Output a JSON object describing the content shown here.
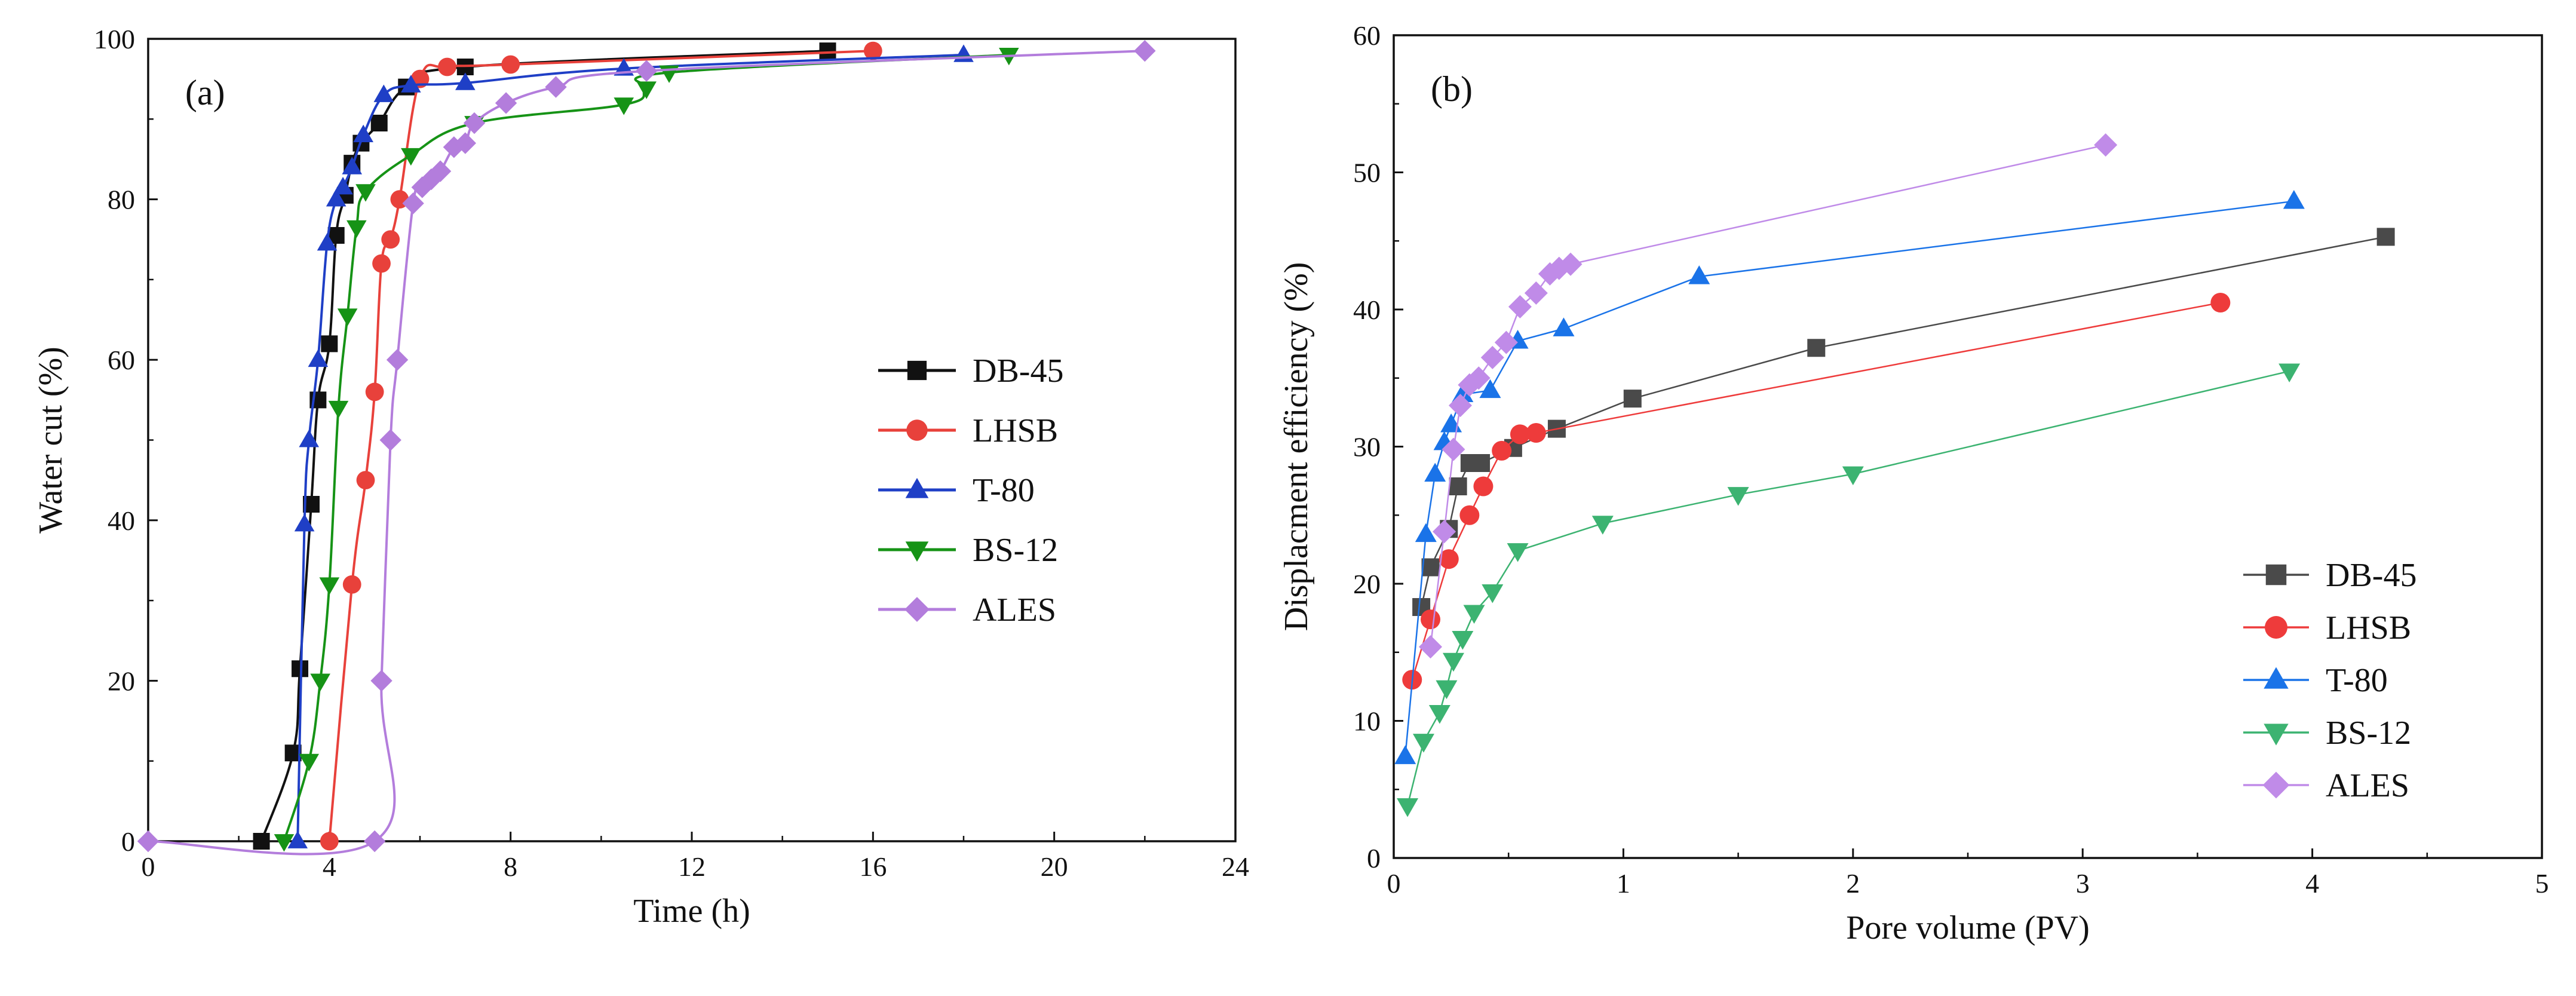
{
  "chart_data": [
    {
      "type": "line",
      "panel_label": "(a)",
      "title": "",
      "xlabel": "Time (h)",
      "ylabel": "Water cut (%)",
      "xlim": [
        0,
        24
      ],
      "ylim": [
        0,
        100
      ],
      "xticks": [
        0,
        4,
        8,
        12,
        16,
        20,
        24
      ],
      "yticks": [
        0,
        20,
        40,
        60,
        80,
        100
      ],
      "grid": false,
      "legend_position": "center-right",
      "series": [
        {
          "name": "DB-45",
          "color": "#111111",
          "marker": "square",
          "smooth": true,
          "x": [
            2.5,
            3.2,
            3.35,
            3.6,
            3.75,
            4.0,
            4.15,
            4.35,
            4.5,
            4.7,
            5.1,
            5.7,
            7.0,
            15.0
          ],
          "y": [
            0,
            11,
            21.5,
            42,
            55,
            62,
            75.5,
            80.5,
            84.5,
            87,
            89.5,
            94,
            96.5,
            98.5
          ]
        },
        {
          "name": "LHSB",
          "color": "#e8413b",
          "marker": "circle",
          "smooth": true,
          "x": [
            4.0,
            4.5,
            4.8,
            5.0,
            5.15,
            5.35,
            5.55,
            6.0,
            6.6,
            8.0,
            16.0
          ],
          "y": [
            0,
            32,
            45,
            56,
            72,
            75,
            80,
            95,
            96.5,
            96.8,
            98.5
          ]
        },
        {
          "name": "T-80",
          "color": "#1f3fc6",
          "marker": "triangle-up",
          "smooth": true,
          "x": [
            3.3,
            3.45,
            3.55,
            3.75,
            3.95,
            4.15,
            4.3,
            4.5,
            4.75,
            5.2,
            5.8,
            7.0,
            10.5,
            18.0
          ],
          "y": [
            0,
            39.5,
            50,
            60,
            74.5,
            80,
            81.5,
            84,
            88,
            93,
            94.2,
            94.5,
            96.3,
            98
          ]
        },
        {
          "name": "BS-12",
          "color": "#169316",
          "marker": "triangle-down",
          "smooth": true,
          "x": [
            3.0,
            3.55,
            3.8,
            4.0,
            4.2,
            4.4,
            4.6,
            4.8,
            5.8,
            7.2,
            10.5,
            11.0,
            11.5,
            19.0
          ],
          "y": [
            0,
            10,
            20,
            32,
            54,
            65.5,
            76.5,
            81,
            85.5,
            89.5,
            91.8,
            93.8,
            95.8,
            98
          ]
        },
        {
          "name": "ALES",
          "color": "#b37ddc",
          "marker": "diamond",
          "smooth": true,
          "x": [
            0.0,
            5.0,
            5.15,
            5.35,
            5.5,
            5.85,
            6.05,
            6.25,
            6.45,
            6.75,
            7.0,
            7.2,
            7.9,
            9.0,
            11.0,
            22.0
          ],
          "y": [
            0,
            0,
            20,
            50,
            60,
            79.5,
            81.5,
            82.5,
            83.5,
            86.5,
            87,
            89.5,
            92,
            94,
            96,
            98.5
          ]
        }
      ]
    },
    {
      "type": "line",
      "panel_label": "(b)",
      "title": "",
      "xlabel": "Pore volume (PV)",
      "ylabel": "Displacment efficiency (%)",
      "xlim": [
        0,
        5
      ],
      "ylim": [
        0,
        60
      ],
      "xticks": [
        0,
        1,
        2,
        3,
        4,
        5
      ],
      "yticks": [
        0,
        10,
        20,
        30,
        40,
        50,
        60
      ],
      "grid": false,
      "legend_position": "bottom-right",
      "series": [
        {
          "name": "DB-45",
          "color": "#4a4a4a",
          "marker": "square",
          "smooth": false,
          "x": [
            0.12,
            0.16,
            0.24,
            0.28,
            0.33,
            0.38,
            0.52,
            0.71,
            1.04,
            1.84,
            4.32
          ],
          "y": [
            18.3,
            21.2,
            24.0,
            27.1,
            28.8,
            28.8,
            29.9,
            31.3,
            33.5,
            37.2,
            45.3
          ]
        },
        {
          "name": "LHSB",
          "color": "#ee3b3b",
          "marker": "circle",
          "smooth": false,
          "x": [
            0.08,
            0.16,
            0.24,
            0.33,
            0.39,
            0.47,
            0.55,
            0.62,
            3.6
          ],
          "y": [
            13.0,
            17.4,
            21.8,
            25.0,
            27.1,
            29.7,
            30.9,
            31.0,
            40.5
          ]
        },
        {
          "name": "T-80",
          "color": "#1a73e8",
          "marker": "triangle-up",
          "smooth": false,
          "x": [
            0.05,
            0.14,
            0.18,
            0.22,
            0.25,
            0.3,
            0.42,
            0.54,
            0.74,
            1.33,
            3.92
          ],
          "y": [
            7.4,
            23.6,
            28.0,
            30.3,
            31.6,
            33.8,
            34.1,
            37.7,
            38.6,
            42.4,
            47.9
          ]
        },
        {
          "name": "BS-12",
          "color": "#3cb371",
          "marker": "triangle-down",
          "smooth": false,
          "x": [
            0.06,
            0.13,
            0.2,
            0.23,
            0.26,
            0.3,
            0.35,
            0.43,
            0.54,
            0.91,
            1.5,
            2.0,
            3.9
          ],
          "y": [
            3.8,
            8.5,
            10.6,
            12.4,
            14.4,
            16.0,
            17.9,
            19.4,
            22.4,
            24.4,
            26.5,
            28.0,
            35.5
          ]
        },
        {
          "name": "ALES",
          "color": "#c08be8",
          "marker": "diamond",
          "smooth": false,
          "x": [
            0.16,
            0.22,
            0.26,
            0.29,
            0.33,
            0.37,
            0.43,
            0.49,
            0.55,
            0.62,
            0.68,
            0.72,
            0.77,
            3.1
          ],
          "y": [
            15.4,
            23.8,
            29.8,
            33.0,
            34.5,
            35.0,
            36.5,
            37.6,
            40.2,
            41.2,
            42.6,
            43.0,
            43.3,
            52.0
          ]
        }
      ]
    }
  ]
}
